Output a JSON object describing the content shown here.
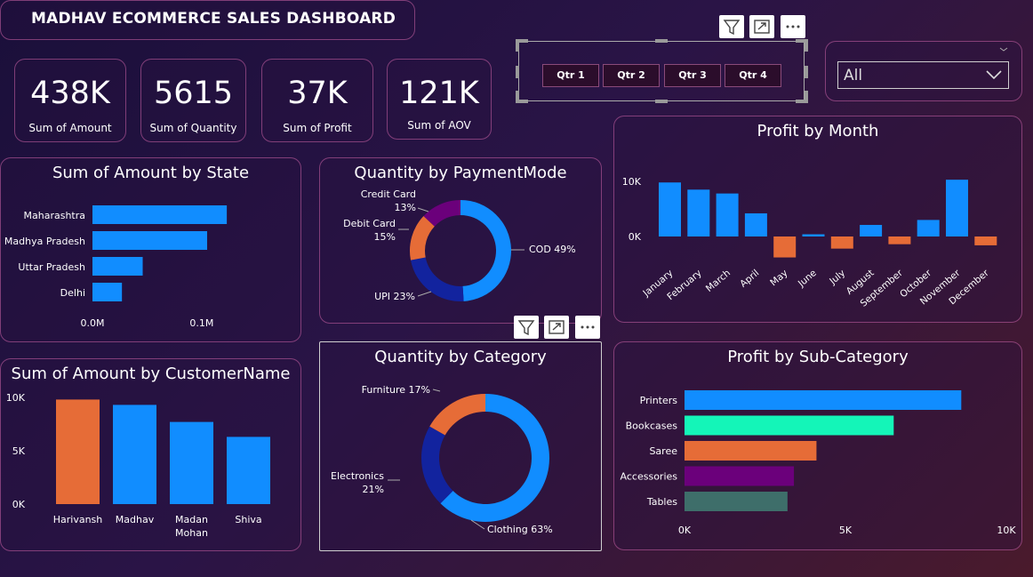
{
  "header": {
    "title": "MADHAV ECOMMERCE SALES DASHBOARD"
  },
  "kpis": [
    {
      "value": "438K",
      "label": "Sum of Amount"
    },
    {
      "value": "5615",
      "label": "Sum of Quantity"
    },
    {
      "value": "37K",
      "label": "Sum of Profit"
    },
    {
      "value": "121K",
      "label": "Sum of AOV"
    }
  ],
  "quarter_slicer": {
    "options": [
      "Qtr 1",
      "Qtr 2",
      "Qtr 3",
      "Qtr 4"
    ]
  },
  "state_dropdown": {
    "selected": "All"
  },
  "colors": {
    "blue": "#118DFF",
    "orange": "#E66C37",
    "purple": "#6B007B",
    "darkblue": "#12239E",
    "teal": "#1AAB9B",
    "aqua": "#14F5B8",
    "slate": "#3E6E6A"
  },
  "chart_data": [
    {
      "id": "amount_by_state",
      "type": "bar",
      "orientation": "horizontal",
      "title": "Sum of Amount by State",
      "categories": [
        "Maharashtra",
        "Madhya Pradesh",
        "Uttar Pradesh",
        "Delhi"
      ],
      "values": [
        0.123,
        0.105,
        0.046,
        0.027
      ],
      "xlim": [
        0,
        0.14
      ],
      "xticks": [
        "0.0M",
        "0.1M"
      ],
      "grid": false
    },
    {
      "id": "qty_by_paymentmode",
      "type": "pie",
      "donut": true,
      "title": "Quantity by PaymentMode",
      "categories": [
        "COD",
        "UPI",
        "Debit Card",
        "Credit Card"
      ],
      "values": [
        49,
        23,
        15,
        13
      ],
      "labels": [
        "COD 49%",
        "UPI 23%",
        "Debit Card\n15%",
        "Credit Card\n13%"
      ],
      "colors": [
        "#118DFF",
        "#12239E",
        "#E66C37",
        "#6B007B"
      ]
    },
    {
      "id": "profit_by_month",
      "type": "bar",
      "title": "Profit by Month",
      "categories": [
        "January",
        "February",
        "March",
        "April",
        "May",
        "June",
        "July",
        "August",
        "September",
        "October",
        "November",
        "December"
      ],
      "values": [
        9800,
        8500,
        7800,
        4200,
        -3800,
        400,
        -2200,
        2100,
        -1400,
        3000,
        10300,
        -1600
      ],
      "ylim": [
        -5000,
        12000
      ],
      "yticks": [
        "0K",
        "10K"
      ],
      "grid": false
    },
    {
      "id": "amount_by_customer",
      "type": "bar",
      "title": "Sum of Amount by CustomerName",
      "categories": [
        "Harivansh",
        "Madhav",
        "Madan Mohan",
        "Shiva"
      ],
      "values": [
        9800,
        9300,
        7700,
        6300
      ],
      "highlight_index": 0,
      "ylim": [
        0,
        10000
      ],
      "yticks": [
        "0K",
        "5K",
        "10K"
      ],
      "grid": false
    },
    {
      "id": "qty_by_category",
      "type": "pie",
      "donut": true,
      "title": "Quantity by Category",
      "categories": [
        "Clothing",
        "Electronics",
        "Furniture"
      ],
      "values": [
        63,
        21,
        17
      ],
      "labels": [
        "Clothing 63%",
        "Electronics\n21%",
        "Furniture 17%"
      ],
      "colors": [
        "#118DFF",
        "#12239E",
        "#E66C37"
      ]
    },
    {
      "id": "profit_by_subcategory",
      "type": "bar",
      "orientation": "horizontal",
      "title": "Profit by Sub-Category",
      "categories": [
        "Printers",
        "Bookcases",
        "Saree",
        "Accessories",
        "Tables"
      ],
      "values": [
        8600,
        6500,
        4100,
        3400,
        3200
      ],
      "colors": [
        "#118DFF",
        "#14F5B8",
        "#E66C37",
        "#6B007B",
        "#3E6E6A"
      ],
      "xlim": [
        0,
        10000
      ],
      "xticks": [
        "0K",
        "5K",
        "10K"
      ],
      "grid": false
    }
  ]
}
